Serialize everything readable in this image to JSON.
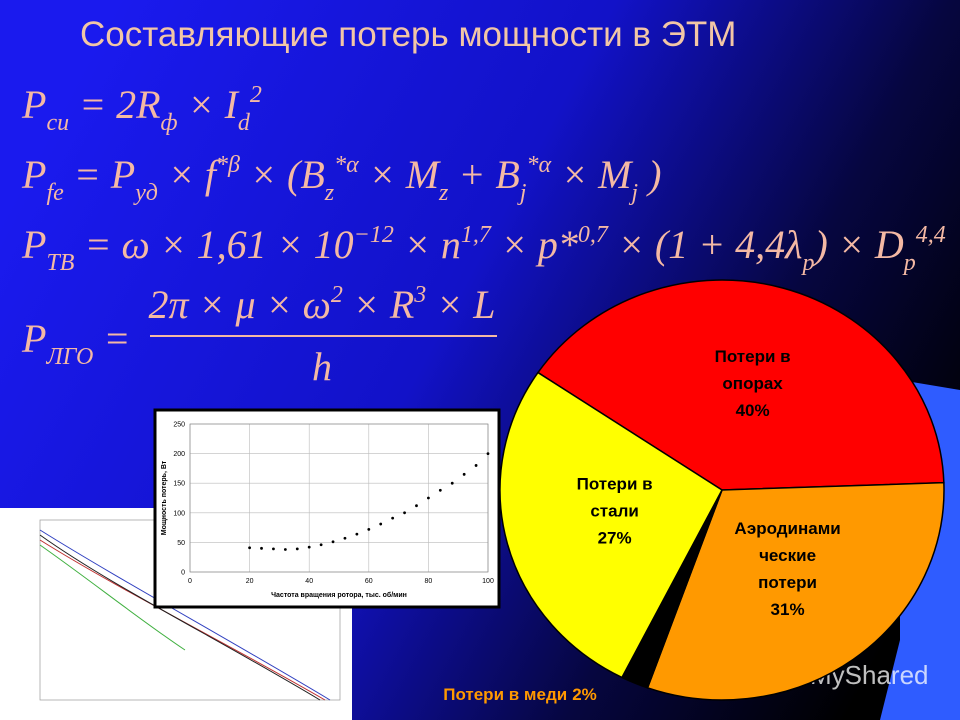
{
  "title": "Составляющие потерь мощности в ЭТМ",
  "formulas": [
    {
      "parts": [
        {
          "text": "P"
        },
        {
          "text": "си",
          "pos": "sub"
        },
        {
          "text": " = 2R"
        },
        {
          "text": "ф",
          "pos": "sub"
        },
        {
          "text": " × I"
        },
        {
          "text": "d",
          "pos": "sub"
        },
        {
          "text": "2",
          "pos": "sup"
        }
      ]
    },
    {
      "parts": [
        {
          "text": "P"
        },
        {
          "text": "fe",
          "pos": "sub"
        },
        {
          "text": " = P"
        },
        {
          "text": "уд",
          "pos": "sub"
        },
        {
          "text": " × f"
        },
        {
          "text": "*β",
          "pos": "sup"
        },
        {
          "text": " × (B"
        },
        {
          "text": "z",
          "pos": "sub"
        },
        {
          "text": "*α",
          "pos": "sup"
        },
        {
          "text": " × M"
        },
        {
          "text": "z",
          "pos": "sub"
        },
        {
          "text": " + B"
        },
        {
          "text": "j",
          "pos": "sub"
        },
        {
          "text": "*α",
          "pos": "sup"
        },
        {
          "text": " × M"
        },
        {
          "text": "j",
          "pos": "sub"
        },
        {
          "text": " )"
        }
      ]
    },
    {
      "parts": [
        {
          "text": "P"
        },
        {
          "text": "ТВ",
          "pos": "sub"
        },
        {
          "text": " = ω × 1,61 × 10"
        },
        {
          "text": "−12",
          "pos": "sup"
        },
        {
          "text": " × n"
        },
        {
          "text": "1,7",
          "pos": "sup"
        },
        {
          "text": " × p*"
        },
        {
          "text": "0,7",
          "pos": "sup"
        },
        {
          "text": " × (1 + 4,4λ"
        },
        {
          "text": "p",
          "pos": "sub"
        },
        {
          "text": ") × D"
        },
        {
          "text": "p",
          "pos": "sub"
        },
        {
          "text": "4,4",
          "pos": "sup"
        }
      ]
    },
    {
      "parts": [
        {
          "text": "P"
        },
        {
          "text": "ЛГО",
          "pos": "sub"
        },
        {
          "text": " = "
        }
      ],
      "numerator": [
        {
          "text": "2π × μ × ω"
        },
        {
          "text": "2",
          "pos": "sup"
        },
        {
          "text": " × R"
        },
        {
          "text": "3",
          "pos": "sup"
        },
        {
          "text": " × L"
        }
      ],
      "denominator": [
        {
          "text": "h"
        }
      ]
    }
  ],
  "watermark": "MyShared",
  "chart_data": [
    {
      "type": "pie",
      "categories": [
        "Потери в опорах",
        "Аэродинами ческие потери",
        "Потери в меди",
        "Потери в стали"
      ],
      "values": [
        40,
        31,
        2,
        27
      ],
      "value_labels": [
        "40%",
        "31%",
        "2%",
        "27%"
      ],
      "colors": [
        "#ff0000",
        "#ff9900",
        "#000000",
        "#ffff00"
      ]
    },
    {
      "type": "scatter",
      "xlabel": "Частота вращения ротора, тыс. об/мин",
      "ylabel": "Мощность потерь, Вт",
      "xlim": [
        0,
        100
      ],
      "ylim": [
        0,
        250
      ],
      "xticks": [
        0,
        20,
        40,
        60,
        80,
        100
      ],
      "yticks": [
        0,
        50,
        100,
        150,
        200,
        250
      ],
      "grid": true,
      "color": "#000000",
      "x": [
        20,
        24,
        28,
        32,
        36,
        40,
        44,
        48,
        52,
        56,
        60,
        64,
        68,
        72,
        76,
        80,
        84,
        88,
        92,
        96,
        100
      ],
      "values": [
        41,
        40,
        39,
        38,
        39,
        42,
        46,
        51,
        57,
        64,
        72,
        81,
        91,
        100,
        112,
        125,
        138,
        150,
        165,
        180,
        200
      ]
    }
  ]
}
